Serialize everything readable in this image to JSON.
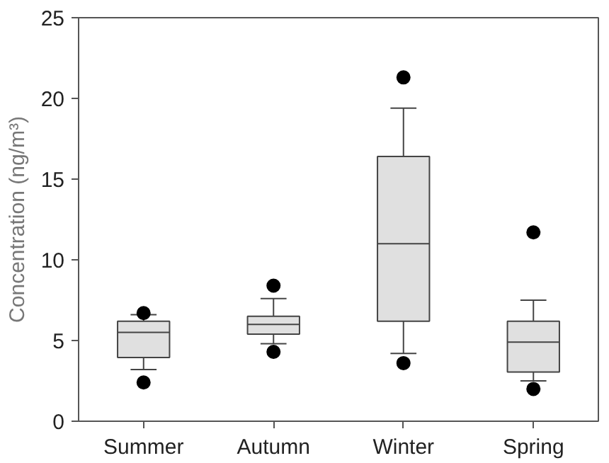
{
  "chart_data": {
    "type": "box",
    "ylabel": "Concentration (ng/m³)",
    "categories": [
      "Summer",
      "Autumn",
      "Winter",
      "Spring"
    ],
    "boxes": [
      {
        "low": 3.2,
        "q1": 3.95,
        "median": 5.5,
        "q3": 6.2,
        "high": 6.6,
        "outliers": [
          6.7,
          2.4
        ]
      },
      {
        "low": 4.8,
        "q1": 5.4,
        "median": 6.0,
        "q3": 6.5,
        "high": 7.6,
        "outliers": [
          8.4,
          4.3
        ]
      },
      {
        "low": 4.2,
        "q1": 6.2,
        "median": 11.0,
        "q3": 16.4,
        "high": 19.4,
        "outliers": [
          21.3,
          3.6
        ]
      },
      {
        "low": 2.5,
        "q1": 3.05,
        "median": 4.9,
        "q3": 6.2,
        "high": 7.5,
        "outliers": [
          11.7,
          2.0
        ]
      }
    ],
    "color": "#e0e0e0",
    "ylim": [
      0,
      25
    ],
    "yticks": [
      0,
      5,
      10,
      15,
      20,
      25
    ],
    "grid": false
  }
}
